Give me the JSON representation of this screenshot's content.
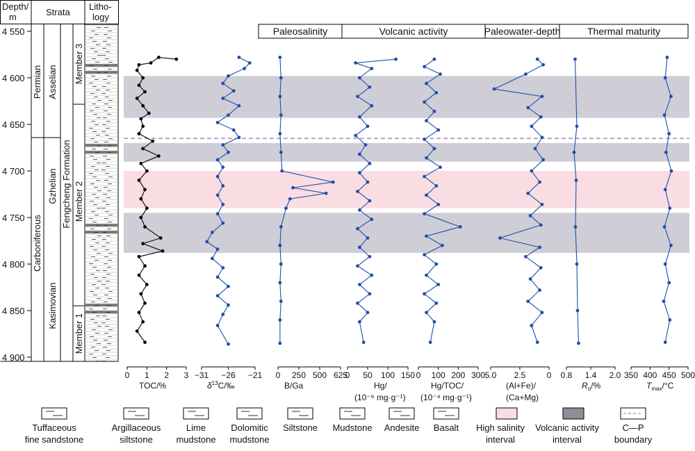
{
  "header": {
    "depth_label_1": "Depth/",
    "depth_label_2": "m",
    "strata": "Strata",
    "lithology_1": "Litho-",
    "lithology_2": "logy"
  },
  "strata": {
    "permian": "Permian",
    "carboniferous": "Carboniferous",
    "asselian": "Asselian",
    "gzhelian": "Gzhelian",
    "kasimovian": "Kasimovian",
    "formation": "Fengcheng Formation",
    "member3": "Member 3",
    "member2": "Member 2",
    "member1": "Member 1"
  },
  "depth_axis": {
    "ticks": [
      "4 550",
      "4 600",
      "4 650",
      "4 700",
      "4 750",
      "4 800",
      "4 850",
      "4 900"
    ],
    "values": [
      4550,
      4600,
      4650,
      4700,
      4750,
      4800,
      4850,
      4900
    ],
    "range": [
      4550,
      4900
    ]
  },
  "groups": [
    {
      "label": "Paleosalinity"
    },
    {
      "label": "Volcanic activity"
    },
    {
      "label": "Paleowater-depth"
    },
    {
      "label": "Thermal maturity"
    }
  ],
  "bands": [
    {
      "type": "volcanic",
      "from": 4598,
      "to": 4643
    },
    {
      "type": "volcanic",
      "from": 4670,
      "to": 4690
    },
    {
      "type": "salinity",
      "from": 4700,
      "to": 4740
    },
    {
      "type": "volcanic",
      "from": 4745,
      "to": 4788
    }
  ],
  "boundary_depth": 4665,
  "colors": {
    "series": "#1f4ea8",
    "toc": "#000000",
    "volcanic_band": "#cfcdd6",
    "salinity_band": "#f9dde3",
    "boundary": "#9b6bb5"
  },
  "chart_data": [
    {
      "type": "line",
      "key": "toc",
      "xlabel": "TOC/%",
      "xlim": [
        0,
        3
      ],
      "ticks": [
        "0",
        "1",
        "2",
        "3"
      ],
      "series_color": "toc",
      "points": [
        [
          2.5,
          4580
        ],
        [
          1.6,
          4578
        ],
        [
          1.2,
          4584
        ],
        [
          0.6,
          4586
        ],
        [
          0.5,
          4592
        ],
        [
          0.8,
          4600
        ],
        [
          0.6,
          4608
        ],
        [
          0.9,
          4615
        ],
        [
          0.5,
          4622
        ],
        [
          0.8,
          4630
        ],
        [
          1.1,
          4638
        ],
        [
          0.7,
          4644
        ],
        [
          0.8,
          4652
        ],
        [
          0.6,
          4660
        ],
        [
          1.3,
          4668
        ],
        [
          0.8,
          4676
        ],
        [
          1.6,
          4684
        ],
        [
          0.7,
          4692
        ],
        [
          1.0,
          4700
        ],
        [
          0.6,
          4710
        ],
        [
          0.9,
          4720
        ],
        [
          0.7,
          4730
        ],
        [
          1.0,
          4740
        ],
        [
          0.7,
          4750
        ],
        [
          0.9,
          4760
        ],
        [
          1.7,
          4772
        ],
        [
          0.8,
          4778
        ],
        [
          1.8,
          4786
        ],
        [
          0.6,
          4792
        ],
        [
          0.9,
          4802
        ],
        [
          0.6,
          4812
        ],
        [
          1.0,
          4822
        ],
        [
          0.7,
          4832
        ],
        [
          0.9,
          4842
        ],
        [
          0.6,
          4852
        ],
        [
          0.8,
          4862
        ],
        [
          0.5,
          4872
        ],
        [
          0.9,
          4884
        ]
      ]
    },
    {
      "type": "line",
      "key": "d13c",
      "xlabel": "δ¹³C/‰",
      "xlim": [
        -31,
        -21
      ],
      "ticks": [
        "−31",
        "−26",
        "−21"
      ],
      "points": [
        [
          -24,
          4578
        ],
        [
          -22,
          4584
        ],
        [
          -23,
          4590
        ],
        [
          -26,
          4598
        ],
        [
          -27,
          4606
        ],
        [
          -25,
          4614
        ],
        [
          -27,
          4622
        ],
        [
          -24,
          4630
        ],
        [
          -26,
          4640
        ],
        [
          -28,
          4648
        ],
        [
          -25,
          4656
        ],
        [
          -24,
          4664
        ],
        [
          -27,
          4672
        ],
        [
          -26,
          4680
        ],
        [
          -28,
          4688
        ],
        [
          -27,
          4696
        ],
        [
          -28,
          4706
        ],
        [
          -27,
          4716
        ],
        [
          -28,
          4726
        ],
        [
          -27,
          4736
        ],
        [
          -28,
          4746
        ],
        [
          -27,
          4756
        ],
        [
          -29,
          4766
        ],
        [
          -30,
          4776
        ],
        [
          -28,
          4784
        ],
        [
          -29,
          4794
        ],
        [
          -27,
          4804
        ],
        [
          -28,
          4814
        ],
        [
          -26,
          4824
        ],
        [
          -28,
          4834
        ],
        [
          -26,
          4844
        ],
        [
          -27,
          4854
        ],
        [
          -28,
          4866
        ],
        [
          -26,
          4886
        ]
      ]
    },
    {
      "type": "line",
      "key": "bga",
      "xlabel": "B/Ga",
      "xlim": [
        0,
        625
      ],
      "ticks": [
        "0",
        "250",
        "500",
        "625"
      ],
      "points": [
        [
          20,
          4578
        ],
        [
          30,
          4600
        ],
        [
          20,
          4620
        ],
        [
          30,
          4640
        ],
        [
          20,
          4660
        ],
        [
          30,
          4680
        ],
        [
          40,
          4700
        ],
        [
          550,
          4712
        ],
        [
          150,
          4718
        ],
        [
          480,
          4724
        ],
        [
          120,
          4730
        ],
        [
          80,
          4740
        ],
        [
          30,
          4760
        ],
        [
          20,
          4780
        ],
        [
          30,
          4800
        ],
        [
          20,
          4820
        ],
        [
          30,
          4840
        ],
        [
          20,
          4860
        ],
        [
          20,
          4885
        ]
      ]
    },
    {
      "type": "line",
      "key": "hg",
      "xlabel": "Hg/",
      "xlabel2": "(10⁻⁶ mg·g⁻¹)",
      "xlim": [
        0,
        150
      ],
      "ticks": [
        "0",
        "50",
        "100",
        "150"
      ],
      "points": [
        [
          120,
          4580
        ],
        [
          20,
          4584
        ],
        [
          60,
          4590
        ],
        [
          30,
          4600
        ],
        [
          55,
          4610
        ],
        [
          25,
          4620
        ],
        [
          60,
          4630
        ],
        [
          30,
          4642
        ],
        [
          50,
          4652
        ],
        [
          20,
          4662
        ],
        [
          45,
          4672
        ],
        [
          30,
          4682
        ],
        [
          55,
          4692
        ],
        [
          30,
          4702
        ],
        [
          50,
          4712
        ],
        [
          25,
          4722
        ],
        [
          55,
          4732
        ],
        [
          30,
          4742
        ],
        [
          60,
          4752
        ],
        [
          25,
          4762
        ],
        [
          50,
          4772
        ],
        [
          30,
          4782
        ],
        [
          55,
          4792
        ],
        [
          25,
          4802
        ],
        [
          60,
          4812
        ],
        [
          30,
          4822
        ],
        [
          55,
          4832
        ],
        [
          25,
          4842
        ],
        [
          50,
          4852
        ],
        [
          30,
          4862
        ],
        [
          40,
          4884
        ]
      ]
    },
    {
      "type": "line",
      "key": "hgtoc",
      "xlabel": "Hg/TOC/",
      "xlabel2": "(10⁻⁴ mg·g⁻¹)",
      "xlim": [
        0,
        300
      ],
      "ticks": [
        "0",
        "100",
        "200",
        "300"
      ],
      "points": [
        [
          80,
          4580
        ],
        [
          30,
          4588
        ],
        [
          110,
          4596
        ],
        [
          40,
          4606
        ],
        [
          90,
          4616
        ],
        [
          30,
          4626
        ],
        [
          80,
          4636
        ],
        [
          40,
          4646
        ],
        [
          100,
          4656
        ],
        [
          30,
          4666
        ],
        [
          80,
          4676
        ],
        [
          40,
          4686
        ],
        [
          110,
          4696
        ],
        [
          30,
          4706
        ],
        [
          90,
          4716
        ],
        [
          40,
          4726
        ],
        [
          100,
          4736
        ],
        [
          30,
          4746
        ],
        [
          210,
          4760
        ],
        [
          40,
          4770
        ],
        [
          120,
          4780
        ],
        [
          30,
          4790
        ],
        [
          90,
          4800
        ],
        [
          40,
          4812
        ],
        [
          100,
          4822
        ],
        [
          30,
          4832
        ],
        [
          90,
          4842
        ],
        [
          40,
          4852
        ],
        [
          80,
          4862
        ],
        [
          60,
          4884
        ]
      ]
    },
    {
      "type": "line",
      "key": "alfe",
      "xlabel": "(Al+Fe)/",
      "xlabel2": "(Ca+Mg)",
      "xlim": [
        5,
        0
      ],
      "ticks": [
        "5.0",
        "2.5",
        "0"
      ],
      "points": [
        [
          1.0,
          4580
        ],
        [
          0.5,
          4586
        ],
        [
          2.0,
          4596
        ],
        [
          4.7,
          4612
        ],
        [
          0.6,
          4620
        ],
        [
          1.8,
          4632
        ],
        [
          0.7,
          4642
        ],
        [
          1.5,
          4652
        ],
        [
          0.6,
          4664
        ],
        [
          1.2,
          4676
        ],
        [
          0.5,
          4688
        ],
        [
          1.5,
          4700
        ],
        [
          0.8,
          4712
        ],
        [
          1.8,
          4724
        ],
        [
          0.6,
          4736
        ],
        [
          1.6,
          4748
        ],
        [
          0.7,
          4758
        ],
        [
          4.2,
          4772
        ],
        [
          0.8,
          4782
        ],
        [
          2.0,
          4792
        ],
        [
          0.7,
          4804
        ],
        [
          1.6,
          4816
        ],
        [
          0.8,
          4828
        ],
        [
          1.8,
          4840
        ],
        [
          0.6,
          4852
        ],
        [
          1.5,
          4866
        ],
        [
          1.0,
          4884
        ]
      ]
    },
    {
      "type": "line",
      "key": "ro",
      "xlabel": "Ro/%",
      "xlim": [
        0.6,
        2.0
      ],
      "ticks": [
        "0.8",
        "1.4",
        "2.0"
      ],
      "points": [
        [
          0.85,
          4580
        ],
        [
          0.9,
          4652
        ],
        [
          0.82,
          4680
        ],
        [
          0.88,
          4710
        ],
        [
          0.86,
          4760
        ],
        [
          0.9,
          4800
        ],
        [
          0.92,
          4850
        ],
        [
          0.95,
          4885
        ]
      ]
    },
    {
      "type": "line",
      "key": "tmax",
      "xlabel": "Tmax/°C",
      "xlim": [
        350,
        500
      ],
      "ticks": [
        "350",
        "400",
        "450",
        "500"
      ],
      "points": [
        [
          445,
          4578
        ],
        [
          440,
          4600
        ],
        [
          455,
          4620
        ],
        [
          438,
          4640
        ],
        [
          450,
          4660
        ],
        [
          442,
          4680
        ],
        [
          456,
          4700
        ],
        [
          440,
          4720
        ],
        [
          452,
          4740
        ],
        [
          438,
          4760
        ],
        [
          455,
          4780
        ],
        [
          440,
          4800
        ],
        [
          450,
          4820
        ],
        [
          436,
          4840
        ],
        [
          452,
          4860
        ],
        [
          440,
          4884
        ]
      ]
    }
  ],
  "axis_labels": {
    "toc": "TOC/%",
    "d13c_prefix": "δ",
    "d13c_sup": "13",
    "d13c_suffix": "C/‰",
    "bga": "B/Ga",
    "hg1": "Hg/",
    "hg2": "(10⁻⁶ mg·g⁻¹)",
    "hgtoc1": "Hg/TOC/",
    "hgtoc2": "(10⁻⁴ mg·g⁻¹)",
    "alfe1": "(Al+Fe)/",
    "alfe2": "(Ca+Mg)",
    "ro_main": "R",
    "ro_sub": "o",
    "ro_suffix": "/%",
    "tmax_main": "T",
    "tmax_sub": "max",
    "tmax_suffix": "/°C"
  },
  "legend": [
    {
      "key": "tuff",
      "line1": "Tuffaceous",
      "line2": "fine sandstone"
    },
    {
      "key": "argsilt",
      "line1": "Argillaceous",
      "line2": "siltstone"
    },
    {
      "key": "limemud",
      "line1": "Lime",
      "line2": "mudstone"
    },
    {
      "key": "dolomud",
      "line1": "Dolomitic",
      "line2": "mudstone"
    },
    {
      "key": "silt",
      "line1": "Siltstone",
      "line2": ""
    },
    {
      "key": "mud",
      "line1": "Mudstone",
      "line2": ""
    },
    {
      "key": "andesite",
      "line1": "Andesite",
      "line2": ""
    },
    {
      "key": "basalt",
      "line1": "Basalt",
      "line2": ""
    },
    {
      "key": "salinity",
      "line1": "High salinity",
      "line2": "interval"
    },
    {
      "key": "volcanic",
      "line1": "Volcanic activity",
      "line2": "interval"
    },
    {
      "key": "boundary",
      "line1": "C—P",
      "line2": "boundary"
    }
  ]
}
